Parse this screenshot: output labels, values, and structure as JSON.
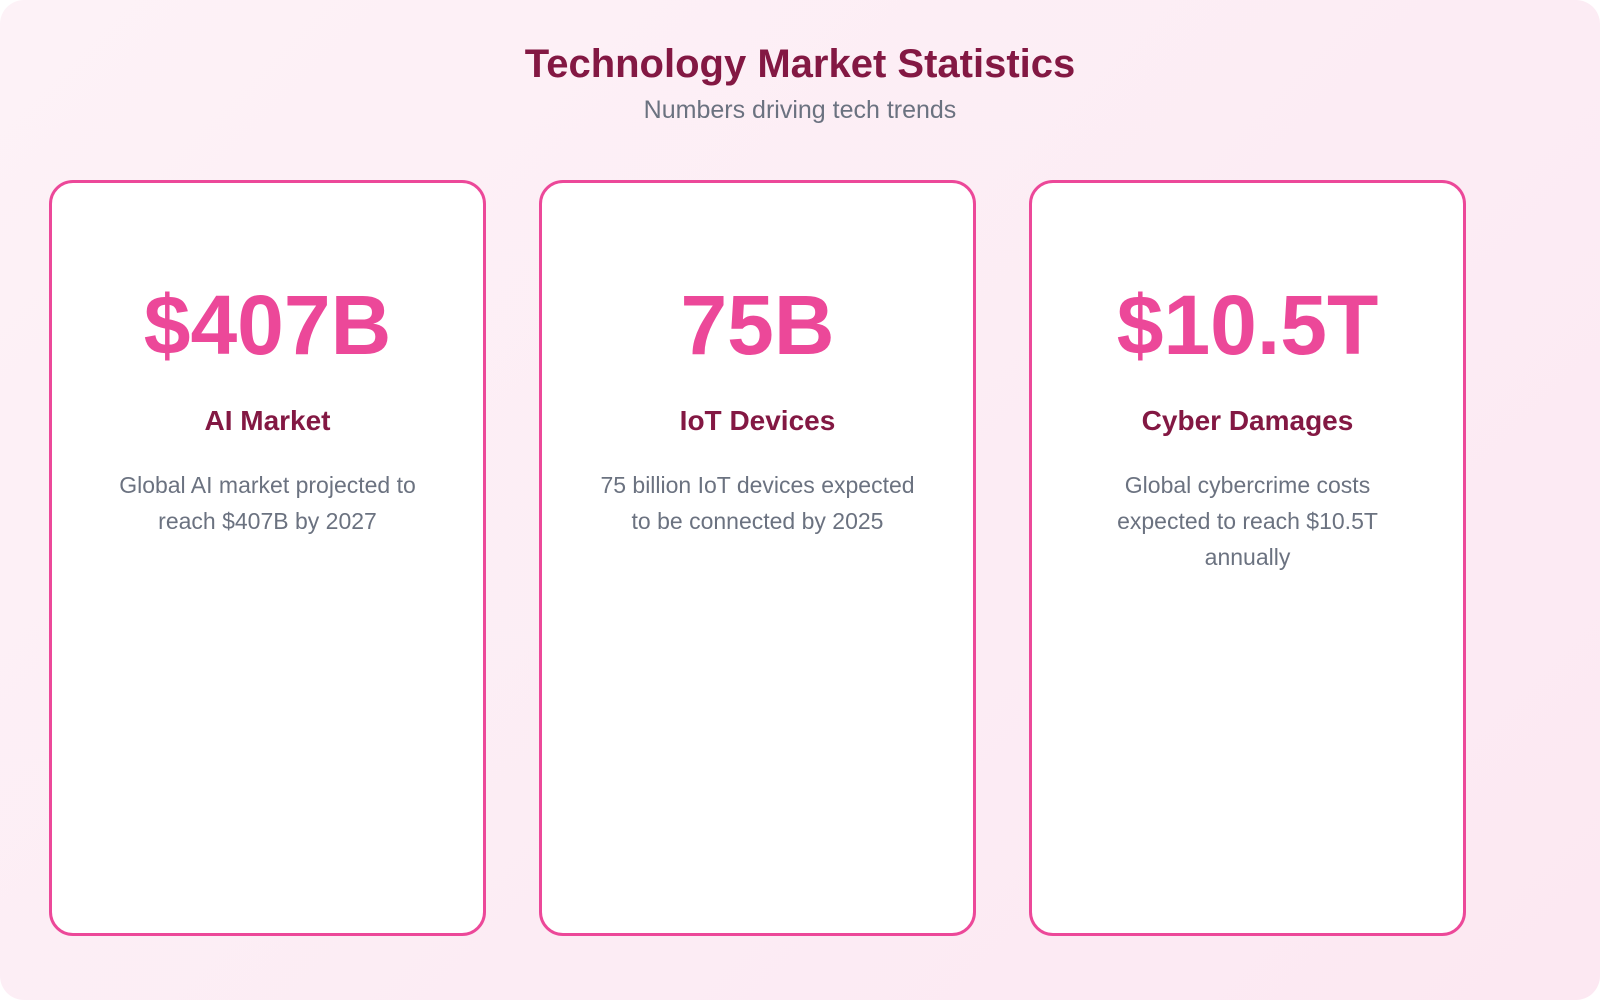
{
  "header": {
    "title": "Technology Market Statistics",
    "subtitle": "Numbers driving tech trends"
  },
  "cards": [
    {
      "value": "$407B",
      "label": "AI Market",
      "description": "Global AI market projected to reach $407B by 2027"
    },
    {
      "value": "75B",
      "label": "IoT Devices",
      "description": "75 billion IoT devices expected to be connected by 2025"
    },
    {
      "value": "$10.5T",
      "label": "Cyber Damages",
      "description": "Global cybercrime costs expected to reach $10.5T annually"
    }
  ]
}
